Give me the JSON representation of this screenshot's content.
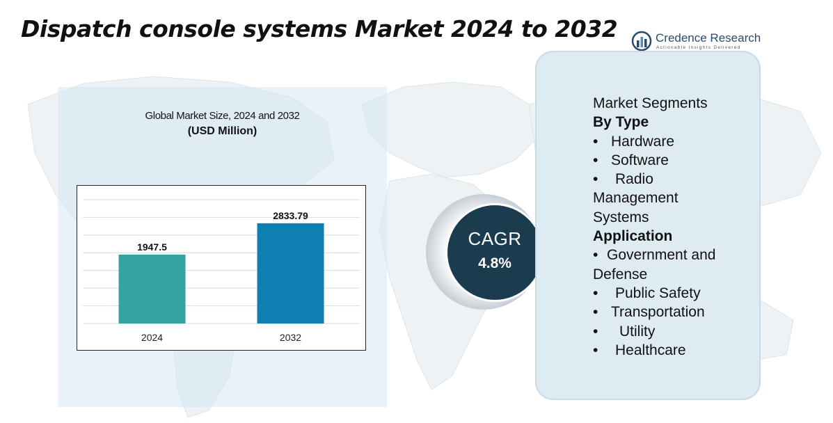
{
  "header": {
    "title": "Dispatch console systems Market 2024 to 2032"
  },
  "logo": {
    "name": "Credence Research",
    "tagline": "Actionable Insights Delivered",
    "icon": "credence-logo-icon"
  },
  "chart_panel": {
    "title": "Global Market Size, 2024 and 2032",
    "unit": "(USD Million)"
  },
  "chart_data": {
    "type": "bar",
    "title": "Global Market Size, 2024 and 2032",
    "ylabel": "(USD Million)",
    "xlabel": "",
    "categories": [
      "2024",
      "2032"
    ],
    "values": [
      1947.5,
      2833.79
    ],
    "value_labels": [
      "1947.5",
      "2833.79"
    ],
    "ylim": [
      0,
      3500
    ],
    "grid": true,
    "colors": [
      "#35a3a1",
      "#0d7fb1"
    ]
  },
  "cagr": {
    "label": "CAGR",
    "value": "4.8%"
  },
  "segments": {
    "heading": "Market Segments",
    "type_heading": "By Type",
    "type_items": [
      "Hardware",
      "Software",
      "Radio"
    ],
    "type_item_wrap": [
      "Management",
      "Systems"
    ],
    "application_heading": "Application",
    "app_first": "Government and",
    "app_first_wrap": "Defense",
    "app_items": [
      "Public Safety",
      "Transportation",
      "Utility",
      "Healthcare"
    ],
    "bullet": "•"
  },
  "colors": {
    "bar_2024": "#35a3a1",
    "bar_2032": "#0d7fb1",
    "cagr_circle": "#1b3b4f",
    "segment_panel": "#deebf3",
    "chart_panel": "#d6e8f2"
  }
}
